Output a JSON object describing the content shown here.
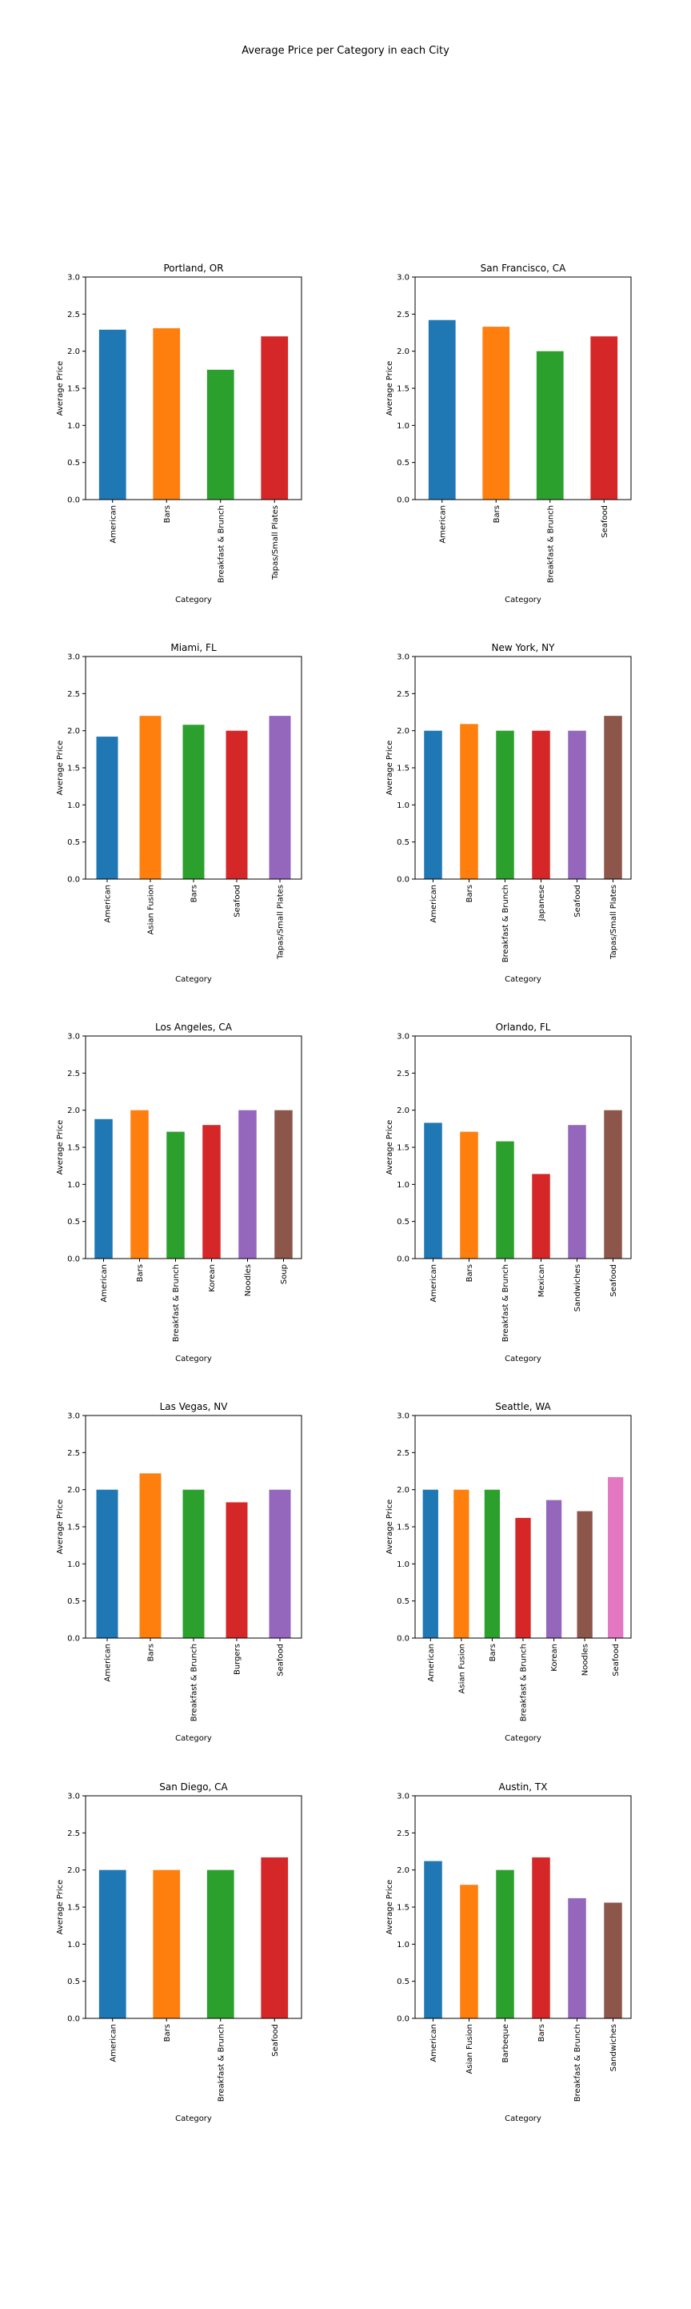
{
  "suptitle": "Average Price per Category in each City",
  "chart_data": [
    {
      "type": "bar",
      "title": "Portland, OR",
      "xlabel": "Category",
      "ylabel": "Average Price",
      "ylim": [
        0,
        3.0
      ],
      "yticks": [
        "0.0",
        "0.5",
        "1.0",
        "1.5",
        "2.0",
        "2.5",
        "3.0"
      ],
      "categories": [
        "American",
        "Bars",
        "Breakfast & Brunch",
        "Tapas/Small Plates"
      ],
      "values": [
        2.29,
        2.31,
        1.75,
        2.2
      ],
      "colors": [
        "#1f77b4",
        "#ff7f0e",
        "#2ca02c",
        "#d62728"
      ]
    },
    {
      "type": "bar",
      "title": "San Francisco, CA",
      "xlabel": "Category",
      "ylabel": "Average Price",
      "ylim": [
        0,
        3.0
      ],
      "yticks": [
        "0.0",
        "0.5",
        "1.0",
        "1.5",
        "2.0",
        "2.5",
        "3.0"
      ],
      "categories": [
        "American",
        "Bars",
        "Breakfast & Brunch",
        "Seafood"
      ],
      "values": [
        2.42,
        2.33,
        2.0,
        2.2
      ],
      "colors": [
        "#1f77b4",
        "#ff7f0e",
        "#2ca02c",
        "#d62728"
      ]
    },
    {
      "type": "bar",
      "title": "Miami, FL",
      "xlabel": "Category",
      "ylabel": "Average Price",
      "ylim": [
        0,
        3.0
      ],
      "yticks": [
        "0.0",
        "0.5",
        "1.0",
        "1.5",
        "2.0",
        "2.5",
        "3.0"
      ],
      "categories": [
        "American",
        "Asian Fusion",
        "Bars",
        "Seafood",
        "Tapas/Small Plates"
      ],
      "values": [
        1.92,
        2.2,
        2.08,
        2.0,
        2.2
      ],
      "colors": [
        "#1f77b4",
        "#ff7f0e",
        "#2ca02c",
        "#d62728",
        "#9467bd"
      ]
    },
    {
      "type": "bar",
      "title": "New York, NY",
      "xlabel": "Category",
      "ylabel": "Average Price",
      "ylim": [
        0,
        3.0
      ],
      "yticks": [
        "0.0",
        "0.5",
        "1.0",
        "1.5",
        "2.0",
        "2.5",
        "3.0"
      ],
      "categories": [
        "American",
        "Bars",
        "Breakfast & Brunch",
        "Japanese",
        "Seafood",
        "Tapas/Small Plates"
      ],
      "values": [
        2.0,
        2.09,
        2.0,
        2.0,
        2.0,
        2.2
      ],
      "colors": [
        "#1f77b4",
        "#ff7f0e",
        "#2ca02c",
        "#d62728",
        "#9467bd",
        "#8c564b"
      ]
    },
    {
      "type": "bar",
      "title": "Los Angeles, CA",
      "xlabel": "Category",
      "ylabel": "Average Price",
      "ylim": [
        0,
        3.0
      ],
      "yticks": [
        "0.0",
        "0.5",
        "1.0",
        "1.5",
        "2.0",
        "2.5",
        "3.0"
      ],
      "categories": [
        "American",
        "Bars",
        "Breakfast & Brunch",
        "Korean",
        "Noodles",
        "Soup"
      ],
      "values": [
        1.88,
        2.0,
        1.71,
        1.8,
        2.0,
        2.0
      ],
      "colors": [
        "#1f77b4",
        "#ff7f0e",
        "#2ca02c",
        "#d62728",
        "#9467bd",
        "#8c564b"
      ]
    },
    {
      "type": "bar",
      "title": "Orlando, FL",
      "xlabel": "Category",
      "ylabel": "Average Price",
      "ylim": [
        0,
        3.0
      ],
      "yticks": [
        "0.0",
        "0.5",
        "1.0",
        "1.5",
        "2.0",
        "2.5",
        "3.0"
      ],
      "categories": [
        "American",
        "Bars",
        "Breakfast & Brunch",
        "Mexican",
        "Sandwiches",
        "Seafood"
      ],
      "values": [
        1.83,
        1.71,
        1.58,
        1.14,
        1.8,
        2.0
      ],
      "colors": [
        "#1f77b4",
        "#ff7f0e",
        "#2ca02c",
        "#d62728",
        "#9467bd",
        "#8c564b"
      ]
    },
    {
      "type": "bar",
      "title": "Las Vegas, NV",
      "xlabel": "Category",
      "ylabel": "Average Price",
      "ylim": [
        0,
        3.0
      ],
      "yticks": [
        "0.0",
        "0.5",
        "1.0",
        "1.5",
        "2.0",
        "2.5",
        "3.0"
      ],
      "categories": [
        "American",
        "Bars",
        "Breakfast & Brunch",
        "Burgers",
        "Seafood"
      ],
      "values": [
        2.0,
        2.22,
        2.0,
        1.83,
        2.0
      ],
      "colors": [
        "#1f77b4",
        "#ff7f0e",
        "#2ca02c",
        "#d62728",
        "#9467bd"
      ]
    },
    {
      "type": "bar",
      "title": "Seattle, WA",
      "xlabel": "Category",
      "ylabel": "Average Price",
      "ylim": [
        0,
        3.0
      ],
      "yticks": [
        "0.0",
        "0.5",
        "1.0",
        "1.5",
        "2.0",
        "2.5",
        "3.0"
      ],
      "categories": [
        "American",
        "Asian Fusion",
        "Bars",
        "Breakfast & Brunch",
        "Korean",
        "Noodles",
        "Seafood"
      ],
      "values": [
        2.0,
        2.0,
        2.0,
        1.62,
        1.86,
        1.71,
        2.17
      ],
      "colors": [
        "#1f77b4",
        "#ff7f0e",
        "#2ca02c",
        "#d62728",
        "#9467bd",
        "#8c564b",
        "#e377c2"
      ]
    },
    {
      "type": "bar",
      "title": "San Diego, CA",
      "xlabel": "Category",
      "ylabel": "Average Price",
      "ylim": [
        0,
        3.0
      ],
      "yticks": [
        "0.0",
        "0.5",
        "1.0",
        "1.5",
        "2.0",
        "2.5",
        "3.0"
      ],
      "categories": [
        "American",
        "Bars",
        "Breakfast & Brunch",
        "Seafood"
      ],
      "values": [
        2.0,
        2.0,
        2.0,
        2.17
      ],
      "colors": [
        "#1f77b4",
        "#ff7f0e",
        "#2ca02c",
        "#d62728"
      ]
    },
    {
      "type": "bar",
      "title": "Austin, TX",
      "xlabel": "Category",
      "ylabel": "Average Price",
      "ylim": [
        0,
        3.0
      ],
      "yticks": [
        "0.0",
        "0.5",
        "1.0",
        "1.5",
        "2.0",
        "2.5",
        "3.0"
      ],
      "categories": [
        "American",
        "Asian Fusion",
        "Barbeque",
        "Bars",
        "Breakfast & Brunch",
        "Sandwiches"
      ],
      "values": [
        2.12,
        1.8,
        2.0,
        2.17,
        1.62,
        1.56
      ],
      "colors": [
        "#1f77b4",
        "#ff7f0e",
        "#2ca02c",
        "#d62728",
        "#9467bd",
        "#8c564b"
      ]
    }
  ]
}
